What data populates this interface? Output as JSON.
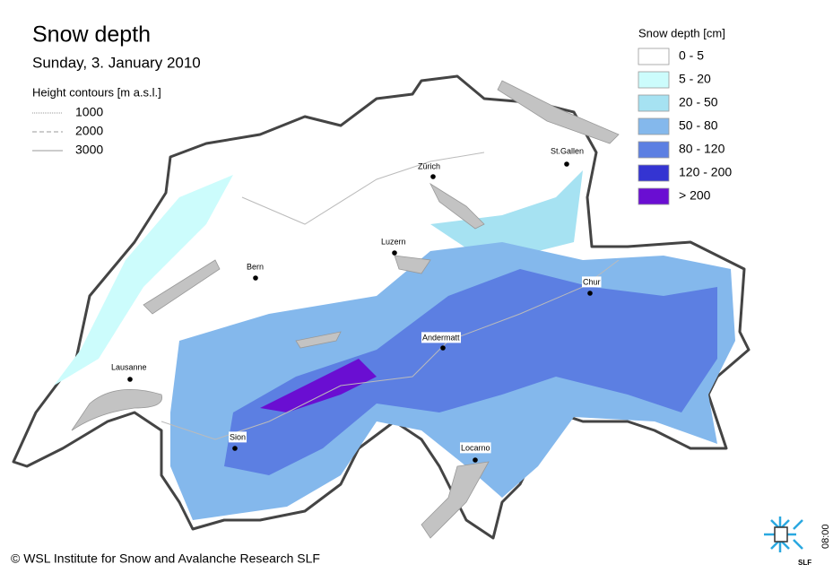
{
  "title": "Snow depth",
  "subtitle": "Sunday, 3. January 2010",
  "contour_legend": {
    "title": "Height contours [m a.s.l.]",
    "items": [
      "1000",
      "2000",
      "3000"
    ]
  },
  "snow_legend": {
    "title": "Snow depth [cm]",
    "items": [
      {
        "label": "0 - 5",
        "color": "#ffffff"
      },
      {
        "label": "5 - 20",
        "color": "#ccfcfc"
      },
      {
        "label": "20 - 50",
        "color": "#a6e2f2"
      },
      {
        "label": "50 - 80",
        "color": "#84b8ec"
      },
      {
        "label": "80 - 120",
        "color": "#5c7fe2"
      },
      {
        "label": "120 - 200",
        "color": "#3434d2"
      },
      {
        "label": "> 200",
        "color": "#6a0ed2"
      }
    ]
  },
  "cities": [
    "Zürich",
    "St.Gallen",
    "Luzern",
    "Bern",
    "Chur",
    "Andermatt",
    "Lausanne",
    "Sion",
    "Locarno"
  ],
  "copyright": "© WSL Institute for Snow and Avalanche Research SLF",
  "logo": "SLF",
  "time": "08:00"
}
